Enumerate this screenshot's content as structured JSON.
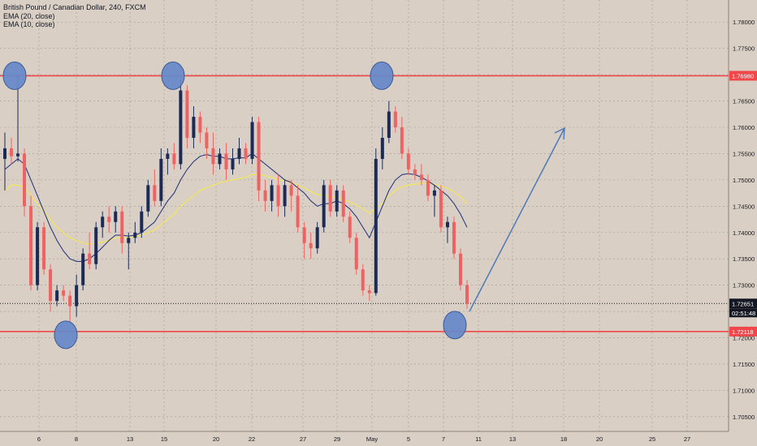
{
  "legend": {
    "title": "British Pound / Canadian Dollar, 240, FXCM",
    "ema20": "EMA (20, close)",
    "ema10": "EMA (10, close)"
  },
  "chart_data": {
    "type": "candlestick",
    "symbol": "GBPCAD",
    "timeframe": "240",
    "y_axis": {
      "ticks": [
        1.705,
        1.71,
        1.715,
        1.72,
        1.725,
        1.73,
        1.735,
        1.74,
        1.745,
        1.75,
        1.755,
        1.76,
        1.765,
        1.77,
        1.775,
        1.78
      ],
      "tick_labels": [
        "1.70500",
        "1.71000",
        "1.71500",
        "1.72000",
        "1.72500",
        "1.73000",
        "1.73500",
        "1.74000",
        "1.74500",
        "1.75000",
        "1.75500",
        "1.76000",
        "1.76500",
        "1.77000",
        "1.77500",
        "1.78000"
      ],
      "range": [
        1.7022,
        1.7842
      ]
    },
    "x_axis": {
      "labels": [
        "6",
        "8",
        "13",
        "15",
        "20",
        "22",
        "27",
        "29",
        "May",
        "5",
        "7",
        "11",
        "13",
        "18",
        "20",
        "25",
        "27"
      ]
    },
    "price_line": {
      "label": "1.72651",
      "value": 1.72651,
      "countdown": "02:51:48"
    },
    "resistance": {
      "label": "1.76980",
      "value": 1.7698
    },
    "support": {
      "label": "1.72118",
      "value": 1.72118
    },
    "ema20_name": "EMA (20, close)",
    "ema10_name": "EMA (10, close)",
    "candles_ohlc": [
      [
        1.754,
        1.759,
        1.748,
        1.756
      ],
      [
        1.756,
        1.758,
        1.753,
        1.7545
      ],
      [
        1.7545,
        1.7698,
        1.7535,
        1.755
      ],
      [
        1.755,
        1.756,
        1.743,
        1.745
      ],
      [
        1.745,
        1.747,
        1.729,
        1.73
      ],
      [
        1.73,
        1.742,
        1.729,
        1.741
      ],
      [
        1.741,
        1.742,
        1.732,
        1.733
      ],
      [
        1.733,
        1.734,
        1.725,
        1.727
      ],
      [
        1.727,
        1.73,
        1.726,
        1.729
      ],
      [
        1.729,
        1.73,
        1.727,
        1.728
      ],
      [
        1.728,
        1.729,
        1.723,
        1.726
      ],
      [
        1.726,
        1.732,
        1.724,
        1.73
      ],
      [
        1.73,
        1.737,
        1.729,
        1.736
      ],
      [
        1.736,
        1.74,
        1.733,
        1.734
      ],
      [
        1.734,
        1.742,
        1.733,
        1.741
      ],
      [
        1.741,
        1.744,
        1.739,
        1.743
      ],
      [
        1.743,
        1.745,
        1.74,
        1.742
      ],
      [
        1.742,
        1.745,
        1.74,
        1.744
      ],
      [
        1.744,
        1.745,
        1.736,
        1.738
      ],
      [
        1.738,
        1.74,
        1.733,
        1.739
      ],
      [
        1.739,
        1.742,
        1.738,
        1.74
      ],
      [
        1.74,
        1.745,
        1.739,
        1.744
      ],
      [
        1.744,
        1.75,
        1.743,
        1.749
      ],
      [
        1.749,
        1.752,
        1.745,
        1.746
      ],
      [
        1.746,
        1.756,
        1.745,
        1.754
      ],
      [
        1.754,
        1.756,
        1.751,
        1.755
      ],
      [
        1.755,
        1.757,
        1.752,
        1.753
      ],
      [
        1.753,
        1.769,
        1.752,
        1.767
      ],
      [
        1.767,
        1.768,
        1.756,
        1.758
      ],
      [
        1.758,
        1.764,
        1.756,
        1.762
      ],
      [
        1.762,
        1.763,
        1.757,
        1.759
      ],
      [
        1.759,
        1.76,
        1.754,
        1.756
      ],
      [
        1.756,
        1.759,
        1.751,
        1.753
      ],
      [
        1.753,
        1.756,
        1.752,
        1.755
      ],
      [
        1.755,
        1.757,
        1.75,
        1.752
      ],
      [
        1.752,
        1.756,
        1.751,
        1.754
      ],
      [
        1.754,
        1.758,
        1.753,
        1.756
      ],
      [
        1.756,
        1.757,
        1.753,
        1.754
      ],
      [
        1.754,
        1.762,
        1.753,
        1.761
      ],
      [
        1.761,
        1.762,
        1.746,
        1.748
      ],
      [
        1.748,
        1.75,
        1.744,
        1.746
      ],
      [
        1.746,
        1.75,
        1.744,
        1.749
      ],
      [
        1.749,
        1.751,
        1.743,
        1.745
      ],
      [
        1.745,
        1.75,
        1.743,
        1.749
      ],
      [
        1.749,
        1.75,
        1.744,
        1.747
      ],
      [
        1.747,
        1.749,
        1.74,
        1.741
      ],
      [
        1.741,
        1.742,
        1.735,
        1.738
      ],
      [
        1.738,
        1.74,
        1.735,
        1.737
      ],
      [
        1.737,
        1.742,
        1.736,
        1.741
      ],
      [
        1.741,
        1.75,
        1.74,
        1.749
      ],
      [
        1.749,
        1.75,
        1.743,
        1.744
      ],
      [
        1.744,
        1.749,
        1.743,
        1.748
      ],
      [
        1.748,
        1.749,
        1.742,
        1.743
      ],
      [
        1.743,
        1.744,
        1.738,
        1.739
      ],
      [
        1.739,
        1.74,
        1.732,
        1.733
      ],
      [
        1.733,
        1.734,
        1.728,
        1.729
      ],
      [
        1.729,
        1.73,
        1.727,
        1.7285
      ],
      [
        1.7285,
        1.756,
        1.728,
        1.754
      ],
      [
        1.754,
        1.76,
        1.752,
        1.758
      ],
      [
        1.758,
        1.765,
        1.757,
        1.763
      ],
      [
        1.763,
        1.764,
        1.759,
        1.76
      ],
      [
        1.76,
        1.762,
        1.754,
        1.755
      ],
      [
        1.755,
        1.756,
        1.751,
        1.752
      ],
      [
        1.752,
        1.753,
        1.75,
        1.751
      ],
      [
        1.751,
        1.753,
        1.749,
        1.75
      ],
      [
        1.75,
        1.751,
        1.746,
        1.747
      ],
      [
        1.747,
        1.749,
        1.743,
        1.748
      ],
      [
        1.748,
        1.749,
        1.74,
        1.741
      ],
      [
        1.741,
        1.743,
        1.738,
        1.742
      ],
      [
        1.742,
        1.743,
        1.735,
        1.736
      ],
      [
        1.736,
        1.737,
        1.729,
        1.73
      ],
      [
        1.73,
        1.731,
        1.7255,
        1.7265
      ]
    ],
    "ema20_values": [
      1.748,
      1.749,
      1.749,
      1.7485,
      1.747,
      1.7455,
      1.744,
      1.7425,
      1.741,
      1.74,
      1.739,
      1.7385,
      1.738,
      1.7378,
      1.738,
      1.7382,
      1.7385,
      1.739,
      1.739,
      1.739,
      1.7392,
      1.7395,
      1.74,
      1.7405,
      1.7415,
      1.7425,
      1.7435,
      1.745,
      1.746,
      1.747,
      1.748,
      1.7485,
      1.749,
      1.7495,
      1.7498,
      1.75,
      1.7502,
      1.7505,
      1.751,
      1.751,
      1.7508,
      1.7505,
      1.75,
      1.7498,
      1.7495,
      1.749,
      1.7485,
      1.7478,
      1.7472,
      1.747,
      1.7468,
      1.7466,
      1.7463,
      1.7458,
      1.7452,
      1.7445,
      1.7437,
      1.7445,
      1.7455,
      1.747,
      1.748,
      1.7487,
      1.749,
      1.7492,
      1.7494,
      1.7494,
      1.7492,
      1.7488,
      1.7484,
      1.7478,
      1.7468,
      1.7455
    ],
    "ema10_values": [
      1.752,
      1.753,
      1.754,
      1.753,
      1.75,
      1.747,
      1.744,
      1.741,
      1.7385,
      1.7365,
      1.735,
      1.7345,
      1.7345,
      1.735,
      1.736,
      1.7372,
      1.7385,
      1.7395,
      1.7395,
      1.7393,
      1.7395,
      1.74,
      1.741,
      1.742,
      1.744,
      1.746,
      1.7475,
      1.75,
      1.752,
      1.7535,
      1.7545,
      1.7548,
      1.7545,
      1.7545,
      1.754,
      1.754,
      1.7542,
      1.7542,
      1.755,
      1.754,
      1.753,
      1.752,
      1.751,
      1.75,
      1.7495,
      1.7485,
      1.7475,
      1.746,
      1.745,
      1.7455,
      1.7455,
      1.746,
      1.7455,
      1.7445,
      1.743,
      1.741,
      1.739,
      1.742,
      1.745,
      1.748,
      1.75,
      1.751,
      1.7512,
      1.751,
      1.7505,
      1.7498,
      1.749,
      1.748,
      1.747,
      1.7455,
      1.7435,
      1.741
    ]
  },
  "colors": {
    "background": "#d9cfc4",
    "up": "#1b2a57",
    "down": "#f06262",
    "ema20": "#f2e65a",
    "ema10": "#1c2e78",
    "level": "#f0474b",
    "marker": "#6689c9",
    "arrow": "#4f79b9",
    "axis_text": "#131722",
    "price_box": "#131722"
  }
}
